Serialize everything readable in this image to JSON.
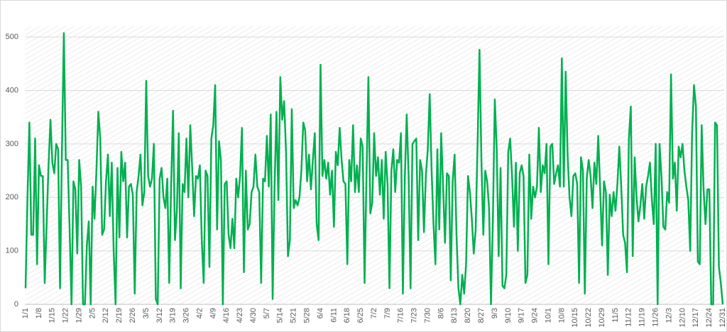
{
  "chart_data": {
    "type": "line",
    "categories": [
      "1/1",
      null,
      null,
      null,
      null,
      null,
      null,
      "1/8",
      null,
      null,
      null,
      null,
      null,
      null,
      "1/15",
      null,
      null,
      null,
      null,
      null,
      null,
      "1/22",
      null,
      null,
      null,
      null,
      null,
      null,
      "1/29",
      null,
      null,
      null,
      null,
      null,
      null,
      "2/5",
      null,
      null,
      null,
      null,
      null,
      null,
      "2/12",
      null,
      null,
      null,
      null,
      null,
      null,
      "2/19",
      null,
      null,
      null,
      null,
      null,
      null,
      "2/26",
      null,
      null,
      null,
      null,
      null,
      null,
      "3/5",
      null,
      null,
      null,
      null,
      null,
      null,
      "3/12",
      null,
      null,
      null,
      null,
      null,
      null,
      "3/19",
      null,
      null,
      null,
      null,
      null,
      null,
      "3/26",
      null,
      null,
      null,
      null,
      null,
      null,
      "4/2",
      null,
      null,
      null,
      null,
      null,
      null,
      "4/9",
      null,
      null,
      null,
      null,
      null,
      null,
      "4/16",
      null,
      null,
      null,
      null,
      null,
      null,
      "4/23",
      null,
      null,
      null,
      null,
      null,
      null,
      "4/30",
      null,
      null,
      null,
      null,
      null,
      null,
      "5/7",
      null,
      null,
      null,
      null,
      null,
      null,
      "5/14",
      null,
      null,
      null,
      null,
      null,
      null,
      "5/21",
      null,
      null,
      null,
      null,
      null,
      null,
      "5/28",
      null,
      null,
      null,
      null,
      null,
      null,
      "6/4",
      null,
      null,
      null,
      null,
      null,
      null,
      "6/11",
      null,
      null,
      null,
      null,
      null,
      null,
      "6/18",
      null,
      null,
      null,
      null,
      null,
      null,
      "6/25",
      null,
      null,
      null,
      null,
      null,
      null,
      "7/2",
      null,
      null,
      null,
      null,
      null,
      null,
      "7/9",
      null,
      null,
      null,
      null,
      null,
      null,
      "7/16",
      null,
      null,
      null,
      null,
      null,
      null,
      "7/23",
      null,
      null,
      null,
      null,
      null,
      null,
      "7/30",
      null,
      null,
      null,
      null,
      null,
      null,
      "8/6",
      null,
      null,
      null,
      null,
      null,
      null,
      "8/13",
      null,
      null,
      null,
      null,
      null,
      null,
      "8/20",
      null,
      null,
      null,
      null,
      null,
      null,
      "8/27",
      null,
      null,
      null,
      null,
      null,
      null,
      "9/3",
      null,
      null,
      null,
      null,
      null,
      null,
      "9/10",
      null,
      null,
      null,
      null,
      null,
      null,
      "9/17",
      null,
      null,
      null,
      null,
      null,
      null,
      "9/24",
      null,
      null,
      null,
      null,
      null,
      null,
      "10/1",
      null,
      null,
      null,
      null,
      null,
      null,
      "10/8",
      null,
      null,
      null,
      null,
      null,
      null,
      "10/15",
      null,
      null,
      null,
      null,
      null,
      null,
      "10/22",
      null,
      null,
      null,
      null,
      null,
      null,
      "10/29",
      null,
      null,
      null,
      null,
      null,
      null,
      "11/5",
      null,
      null,
      null,
      null,
      null,
      null,
      "11/12",
      null,
      null,
      null,
      null,
      null,
      null,
      "11/19",
      null,
      null,
      null,
      null,
      null,
      null,
      "11/26",
      null,
      null,
      null,
      null,
      null,
      null,
      "12/3",
      null,
      null,
      null,
      null,
      null,
      null,
      "12/10",
      null,
      null,
      null,
      null,
      null,
      null,
      "12/17",
      null,
      null,
      null,
      null,
      null,
      null,
      "12/24",
      null,
      null,
      null,
      null,
      null,
      null,
      "12/31"
    ],
    "values": [
      30,
      200,
      340,
      130,
      130,
      310,
      75,
      260,
      240,
      240,
      40,
      150,
      260,
      345,
      265,
      245,
      300,
      290,
      30,
      290,
      507,
      270,
      270,
      140,
      0,
      230,
      215,
      95,
      270,
      220,
      0,
      0,
      110,
      155,
      0,
      220,
      160,
      250,
      360,
      310,
      130,
      140,
      230,
      280,
      165,
      265,
      100,
      0,
      255,
      125,
      285,
      230,
      265,
      125,
      220,
      225,
      205,
      20,
      210,
      240,
      280,
      185,
      210,
      418,
      240,
      220,
      235,
      300,
      10,
      0,
      235,
      255,
      200,
      180,
      235,
      40,
      220,
      362,
      120,
      175,
      320,
      30,
      225,
      210,
      310,
      200,
      335,
      255,
      165,
      240,
      235,
      260,
      120,
      40,
      250,
      240,
      70,
      310,
      335,
      410,
      140,
      305,
      270,
      0,
      225,
      230,
      130,
      105,
      160,
      105,
      235,
      200,
      240,
      330,
      60,
      250,
      140,
      150,
      210,
      220,
      280,
      220,
      210,
      40,
      235,
      230,
      315,
      220,
      355,
      10,
      220,
      360,
      195,
      425,
      345,
      380,
      285,
      90,
      120,
      365,
      180,
      195,
      185,
      200,
      250,
      340,
      325,
      230,
      280,
      215,
      270,
      320,
      150,
      120,
      448,
      240,
      270,
      235,
      265,
      205,
      250,
      145,
      285,
      260,
      330,
      270,
      230,
      225,
      75,
      270,
      230,
      335,
      210,
      260,
      210,
      310,
      295,
      40,
      240,
      425,
      170,
      190,
      320,
      240,
      275,
      205,
      270,
      160,
      285,
      225,
      30,
      250,
      290,
      210,
      270,
      265,
      320,
      20,
      235,
      355,
      240,
      30,
      300,
      305,
      310,
      120,
      270,
      250,
      135,
      240,
      290,
      393,
      250,
      150,
      75,
      290,
      140,
      320,
      220,
      115,
      245,
      240,
      45,
      230,
      280,
      130,
      30,
      0,
      55,
      20,
      75,
      240,
      210,
      160,
      95,
      140,
      300,
      476,
      270,
      130,
      250,
      230,
      180,
      0,
      160,
      383,
      290,
      90,
      255,
      35,
      30,
      55,
      285,
      310,
      240,
      145,
      265,
      100,
      245,
      260,
      240,
      40,
      55,
      280,
      160,
      220,
      200,
      220,
      330,
      210,
      260,
      245,
      300,
      75,
      295,
      300,
      225,
      245,
      260,
      220,
      460,
      220,
      435,
      280,
      200,
      165,
      240,
      245,
      225,
      40,
      275,
      250,
      20,
      235,
      270,
      240,
      180,
      265,
      225,
      315,
      215,
      110,
      230,
      210,
      55,
      205,
      165,
      210,
      175,
      225,
      295,
      220,
      130,
      115,
      60,
      310,
      370,
      90,
      275,
      200,
      155,
      185,
      225,
      160,
      220,
      240,
      265,
      195,
      150,
      300,
      0,
      300,
      240,
      145,
      140,
      210,
      190,
      430,
      235,
      265,
      175,
      295,
      275,
      300,
      250,
      220,
      195,
      100,
      320,
      410,
      370,
      80,
      75,
      335,
      215,
      150,
      215,
      215,
      0,
      0,
      340,
      335,
      70,
      40,
      0
    ],
    "color": "#00b050",
    "ylim": [
      0,
      520
    ],
    "yticks": [
      0,
      100,
      200,
      300,
      400,
      500
    ],
    "grid": true
  }
}
